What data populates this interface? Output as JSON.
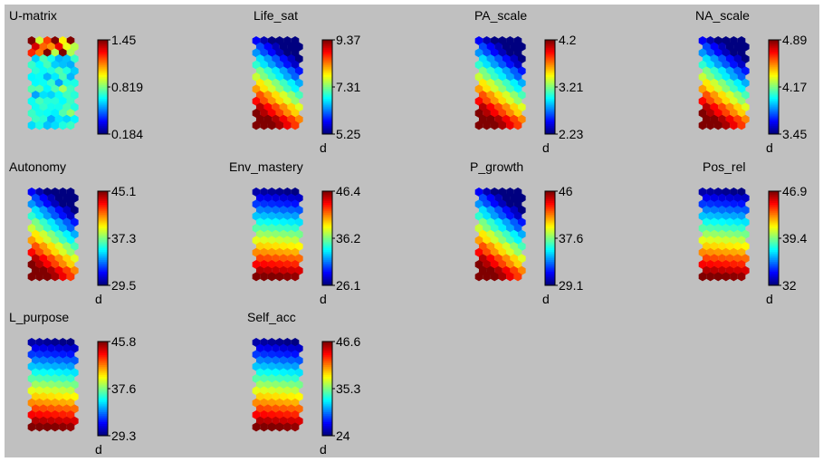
{
  "chart_data": [
    {
      "type": "heatmap",
      "title": "U-matrix",
      "colorbar_ticks": [
        "1.45",
        "0.819",
        "0.184"
      ],
      "colorbar_label": "",
      "range": [
        0.184,
        1.45
      ],
      "colormap": "jet",
      "pattern": "umatrix"
    },
    {
      "type": "heatmap",
      "title": "Life_sat",
      "colorbar_ticks": [
        "9.37",
        "7.31",
        "5.25"
      ],
      "colorbar_label": "d",
      "range": [
        5.25,
        9.37
      ],
      "colormap": "jet",
      "pattern": "diagonal_high_bottom"
    },
    {
      "type": "heatmap",
      "title": "PA_scale",
      "colorbar_ticks": [
        "4.2",
        "3.21",
        "2.23"
      ],
      "colorbar_label": "d",
      "range": [
        2.23,
        4.2
      ],
      "colormap": "jet",
      "pattern": "diagonal_high_bottom"
    },
    {
      "type": "heatmap",
      "title": "NA_scale",
      "colorbar_ticks": [
        "4.89",
        "4.17",
        "3.45"
      ],
      "colorbar_label": "d",
      "range": [
        3.45,
        4.89
      ],
      "colormap": "jet",
      "pattern": "diagonal_high_bottom"
    },
    {
      "type": "heatmap",
      "title": "Autonomy",
      "colorbar_ticks": [
        "45.1",
        "37.3",
        "29.5"
      ],
      "colorbar_label": "d",
      "range": [
        29.5,
        45.1
      ],
      "colormap": "jet",
      "pattern": "diagonal_high_bottom"
    },
    {
      "type": "heatmap",
      "title": "Env_mastery",
      "colorbar_ticks": [
        "46.4",
        "36.2",
        "26.1"
      ],
      "colorbar_label": "d",
      "range": [
        26.1,
        46.4
      ],
      "colormap": "jet",
      "pattern": "vertical_high_bottom"
    },
    {
      "type": "heatmap",
      "title": "P_growth",
      "colorbar_ticks": [
        "46",
        "37.6",
        "29.1"
      ],
      "colorbar_label": "d",
      "range": [
        29.1,
        46
      ],
      "colormap": "jet",
      "pattern": "diagonal_high_bottom"
    },
    {
      "type": "heatmap",
      "title": "Pos_rel",
      "colorbar_ticks": [
        "46.9",
        "39.4",
        "32"
      ],
      "colorbar_label": "d",
      "range": [
        32,
        46.9
      ],
      "colormap": "jet",
      "pattern": "vertical_high_bottom"
    },
    {
      "type": "heatmap",
      "title": "L_purpose",
      "colorbar_ticks": [
        "45.8",
        "37.6",
        "29.3"
      ],
      "colorbar_label": "d",
      "range": [
        29.3,
        45.8
      ],
      "colormap": "jet",
      "pattern": "vertical_high_bottom"
    },
    {
      "type": "heatmap",
      "title": "Self_acc",
      "colorbar_ticks": [
        "46.6",
        "35.3",
        "24"
      ],
      "colorbar_label": "d",
      "range": [
        24,
        46.6
      ],
      "colormap": "jet",
      "pattern": "vertical_high_bottom"
    }
  ]
}
